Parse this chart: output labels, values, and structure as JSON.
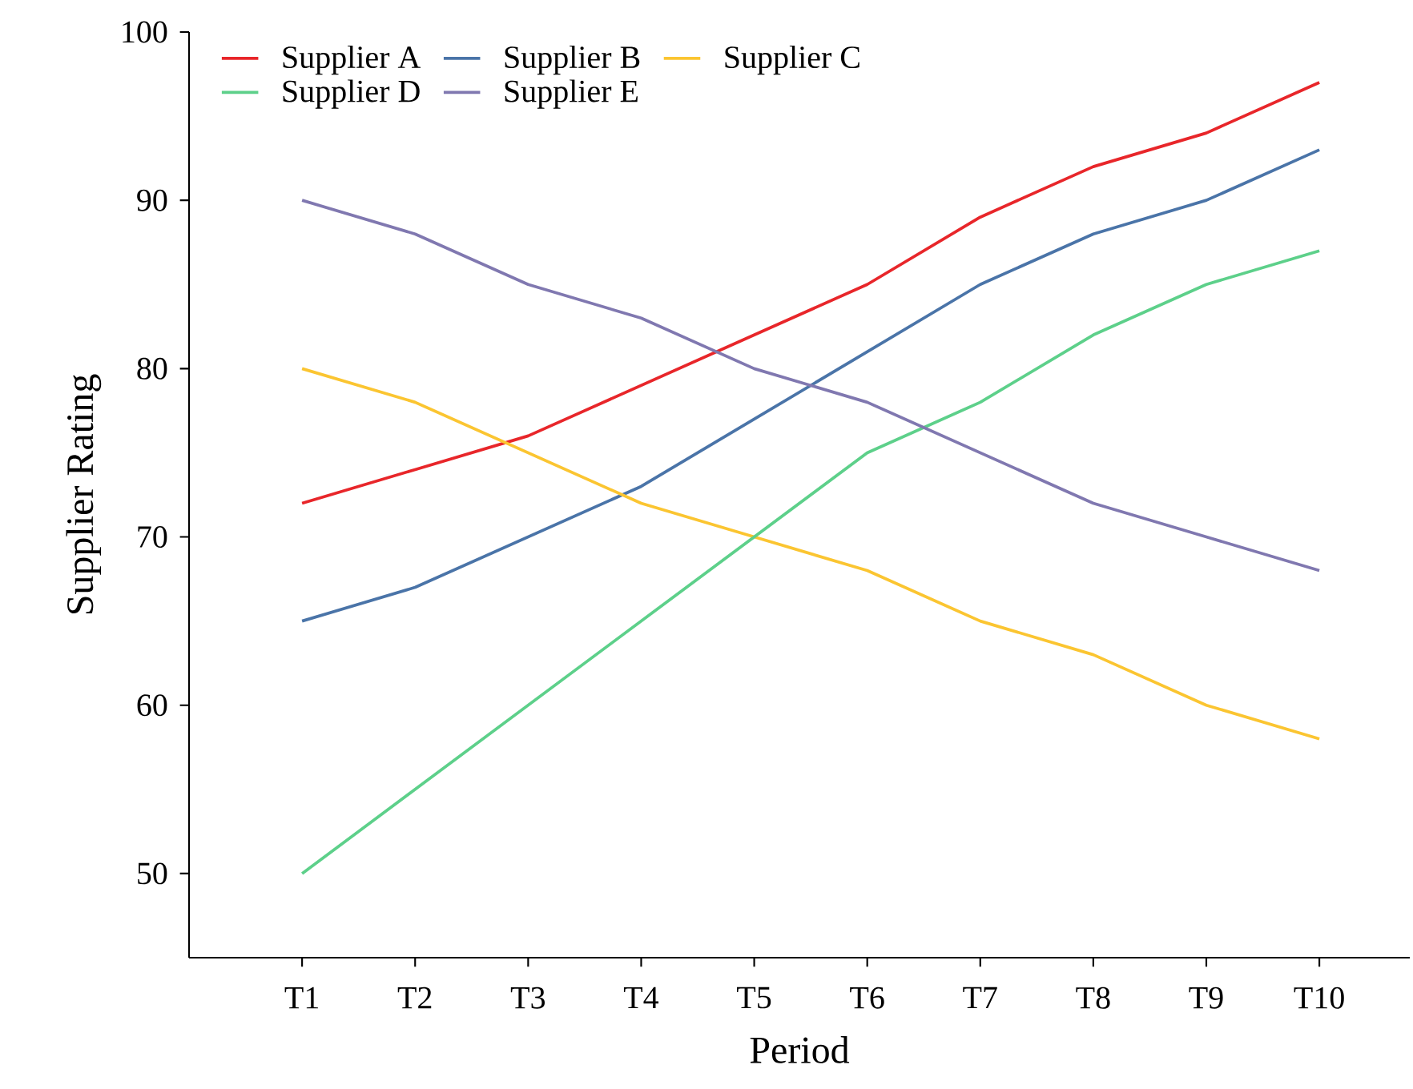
{
  "chart_data": {
    "type": "line",
    "xlabel": "Period",
    "ylabel": "Supplier Rating",
    "categories": [
      "T1",
      "T2",
      "T3",
      "T4",
      "T5",
      "T6",
      "T7",
      "T8",
      "T9",
      "T10"
    ],
    "series": [
      {
        "name": "Supplier A",
        "color": "#e8262a",
        "values": [
          72,
          74,
          76,
          79,
          82,
          85,
          89,
          92,
          94,
          97
        ]
      },
      {
        "name": "Supplier B",
        "color": "#4a74a8",
        "values": [
          65,
          67,
          70,
          73,
          77,
          81,
          85,
          88,
          90,
          93
        ]
      },
      {
        "name": "Supplier C",
        "color": "#fbc531",
        "values": [
          80,
          78,
          75,
          72,
          70,
          68,
          65,
          63,
          60,
          58
        ]
      },
      {
        "name": "Supplier D",
        "color": "#5dd08a",
        "values": [
          50,
          55,
          60,
          65,
          70,
          75,
          78,
          82,
          85,
          87
        ]
      },
      {
        "name": "Supplier E",
        "color": "#8078b0",
        "values": [
          90,
          88,
          85,
          83,
          80,
          78,
          75,
          72,
          70,
          68
        ]
      }
    ],
    "ylim": [
      45,
      100
    ],
    "yticks": [
      50,
      60,
      70,
      80,
      90,
      100
    ],
    "grid": false,
    "legend": "top left",
    "marker": "none",
    "line_style": "solid"
  }
}
